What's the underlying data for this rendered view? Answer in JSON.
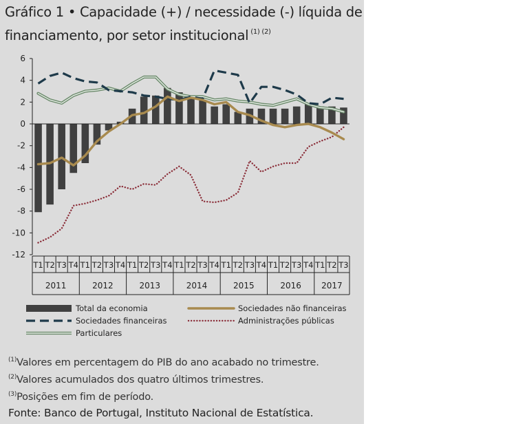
{
  "chart_data": {
    "type": "bar+line",
    "title_prefix": "Gráfico 1",
    "title_bullet": "•",
    "title": "Capacidade (+) / necessidade (-) líquida de financiamento, por setor institucional",
    "title_refs": "(1) (2)",
    "ylim": [
      -12,
      6
    ],
    "yticks": [
      6,
      4,
      2,
      0,
      -2,
      -4,
      -6,
      -8,
      -10,
      -12
    ],
    "quarters": [
      "T1",
      "T2",
      "T3",
      "T4",
      "T1",
      "T2",
      "T3",
      "T4",
      "T1",
      "T2",
      "T3",
      "T4",
      "T1",
      "T2",
      "T3",
      "T4",
      "T1",
      "T2",
      "T3",
      "T4",
      "T1",
      "T2",
      "T3",
      "T4",
      "T1",
      "T2",
      "T3"
    ],
    "years": [
      {
        "label": "2011",
        "quarters": 4
      },
      {
        "label": "2012",
        "quarters": 4
      },
      {
        "label": "2013",
        "quarters": 4
      },
      {
        "label": "2014",
        "quarters": 4
      },
      {
        "label": "2015",
        "quarters": 4
      },
      {
        "label": "2016",
        "quarters": 4
      },
      {
        "label": "2017",
        "quarters": 3
      }
    ],
    "series": [
      {
        "name": "Total da economia",
        "kind": "bar",
        "color": "#404040",
        "values": [
          -8.1,
          -7.4,
          -6.0,
          -4.5,
          -3.6,
          -1.9,
          -0.6,
          0.2,
          1.4,
          2.5,
          2.6,
          3.3,
          2.9,
          2.5,
          2.2,
          1.6,
          1.8,
          1.1,
          1.4,
          1.4,
          1.4,
          1.4,
          1.6,
          1.8,
          1.6,
          1.6,
          1.5
        ]
      },
      {
        "name": "Sociedades não financeiras",
        "kind": "line",
        "color": "#a88a4e",
        "values": [
          -3.7,
          -3.6,
          -3.1,
          -3.8,
          -2.9,
          -1.6,
          -0.7,
          0.0,
          0.8,
          1.0,
          1.6,
          2.5,
          2.1,
          2.4,
          2.2,
          1.8,
          2.0,
          1.1,
          0.8,
          0.3,
          -0.1,
          -0.3,
          -0.1,
          0.0,
          -0.3,
          -0.8,
          -1.4
        ]
      },
      {
        "name": "Sociedades financeiras",
        "kind": "line",
        "color": "#1e3a4a",
        "values": [
          3.7,
          4.4,
          4.7,
          4.2,
          3.9,
          3.8,
          3.1,
          3.0,
          2.9,
          2.6,
          2.5,
          2.3,
          2.2,
          2.5,
          2.3,
          4.9,
          4.7,
          4.5,
          1.9,
          3.4,
          3.4,
          3.1,
          2.7,
          1.9,
          1.8,
          2.4,
          2.3
        ]
      },
      {
        "name": "Administrações públicas",
        "kind": "line",
        "color": "#8b2f3a",
        "values": [
          -10.9,
          -10.4,
          -9.6,
          -7.5,
          -7.3,
          -7.0,
          -6.6,
          -5.7,
          -6.0,
          -5.5,
          -5.6,
          -4.6,
          -3.9,
          -4.7,
          -7.1,
          -7.2,
          -7.0,
          -6.3,
          -3.4,
          -4.4,
          -3.9,
          -3.6,
          -3.6,
          -2.1,
          -1.6,
          -1.2,
          -0.3
        ]
      },
      {
        "name": "Particulares",
        "kind": "line",
        "color": "#6b8a6b",
        "values": [
          2.8,
          2.2,
          1.9,
          2.6,
          3.0,
          3.1,
          3.3,
          3.0,
          3.7,
          4.3,
          4.3,
          3.2,
          2.7,
          2.5,
          2.5,
          2.2,
          2.3,
          2.1,
          2.0,
          1.8,
          1.7,
          2.0,
          2.3,
          1.8,
          1.5,
          1.4,
          1.1
        ]
      }
    ]
  },
  "footnotes": [
    {
      "ref": "(1)",
      "text": "Valores em percentagem do PIB do ano acabado no trimestre."
    },
    {
      "ref": "(2)",
      "text": "Valores acumulados dos quatro últimos trimestres."
    },
    {
      "ref": "(3)",
      "text": "Posições em fim de período."
    }
  ],
  "source": "Fonte: Banco de Portugal, Instituto Nacional de Estatística."
}
